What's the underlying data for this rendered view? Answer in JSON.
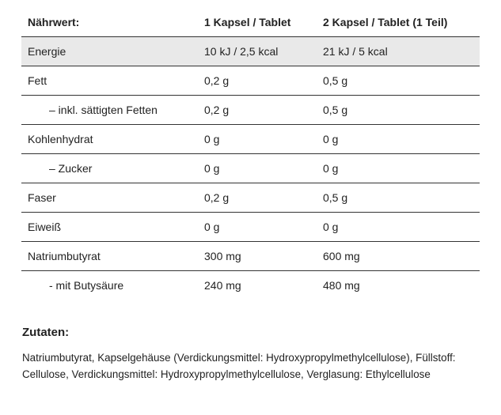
{
  "table": {
    "headers": [
      "Nährwert:",
      "1 Kapsel / Tablet",
      "2 Kapsel / Tablet (1 Teil)"
    ],
    "rows": [
      {
        "name": "Energie",
        "v1": "10 kJ / 2,5 kcal",
        "v2": "21 kJ / 5 kcal"
      },
      {
        "name": "Fett",
        "v1": "0,2 g",
        "v2": "0,5 g"
      },
      {
        "name": "– inkl. sättigten Fetten",
        "v1": "0,2 g",
        "v2": "0,5 g"
      },
      {
        "name": "Kohlenhydrat",
        "v1": "0 g",
        "v2": "0 g"
      },
      {
        "name": "– Zucker",
        "v1": "0 g",
        "v2": "0 g"
      },
      {
        "name": "Faser",
        "v1": "0,2 g",
        "v2": "0,5 g"
      },
      {
        "name": "Eiweiß",
        "v1": "0 g",
        "v2": "0 g"
      },
      {
        "name": "Natriumbutyrat",
        "v1": "300 mg",
        "v2": "600 mg"
      },
      {
        "name": "- mit Butysäure",
        "v1": "240 mg",
        "v2": "480 mg"
      }
    ]
  },
  "ingredients": {
    "title": "Zutaten:",
    "text": "Natriumbutyrat, Kapselgehäuse (Verdickungsmittel: Hydroxypropylmethylcellulose), Füllstoff: Cellulose, Verdickungsmittel: Hydroxypropylmethylcellulose, Verglasung: Ethylcellulose"
  },
  "colors": {
    "shaded_row": "#e9e9e9",
    "rule": "#333333",
    "text": "#222222"
  }
}
